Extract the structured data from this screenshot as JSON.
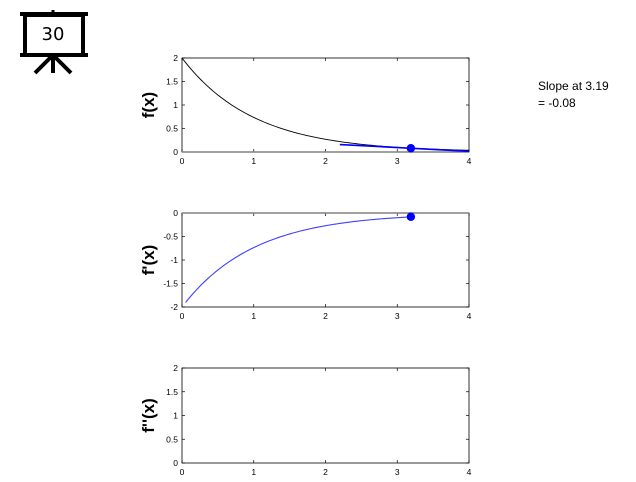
{
  "presenter_icon": {
    "icon": "presentation-board-icon",
    "number": "30"
  },
  "annotation": {
    "line1": "Slope at 3.19",
    "line2": "= -0.08"
  },
  "colors": {
    "function_curve": "#000000",
    "tangent_line": "#0000ff",
    "derivative_curve": "#4040ff",
    "marker": "#0000ff",
    "zero_line": "#808080"
  },
  "chart_data": [
    {
      "type": "line",
      "ylabel": "f(x)",
      "xlim": [
        0,
        4
      ],
      "ylim": [
        0,
        2
      ],
      "xticks": [
        "0",
        "1",
        "2",
        "3",
        "4"
      ],
      "yticks": [
        "0",
        "0.5",
        "1",
        "1.5",
        "2"
      ],
      "series": [
        {
          "function": "2*exp(-x)",
          "x_range": [
            0,
            4
          ],
          "values_at": {
            "x": [
              0,
              1,
              2,
              3,
              4
            ],
            "y": [
              2,
              0.74,
              0.27,
              0.1,
              0.04
            ]
          }
        }
      ],
      "tangent": {
        "x": 3.19,
        "y": 0.08,
        "slope": -0.08,
        "x_range": [
          2.2,
          4
        ]
      },
      "marker": {
        "x": 3.19,
        "y": 0.08
      },
      "zero_line": true
    },
    {
      "type": "line",
      "ylabel": "f'(x)",
      "xlim": [
        0,
        4
      ],
      "ylim": [
        -2,
        0
      ],
      "xticks": [
        "0",
        "1",
        "2",
        "3",
        "4"
      ],
      "yticks": [
        "0",
        "-0.5",
        "-1",
        "-1.5",
        "-2"
      ],
      "series": [
        {
          "function": "-2*exp(-x)",
          "x_range": [
            0.05,
            3.19
          ],
          "values_at": {
            "x": [
              0.05,
              1,
              2,
              3,
              3.19
            ],
            "y": [
              -1.9,
              -0.74,
              -0.27,
              -0.1,
              -0.08
            ]
          }
        }
      ],
      "marker": {
        "x": 3.19,
        "y": -0.08
      },
      "zero_line": true
    },
    {
      "type": "line",
      "ylabel": "f''(x)",
      "xlim": [
        0,
        4
      ],
      "ylim": [
        0,
        2
      ],
      "xticks": [
        "0",
        "1",
        "2",
        "3",
        "4"
      ],
      "yticks": [
        "0",
        "0.5",
        "1",
        "1.5",
        "2"
      ],
      "series": []
    }
  ]
}
